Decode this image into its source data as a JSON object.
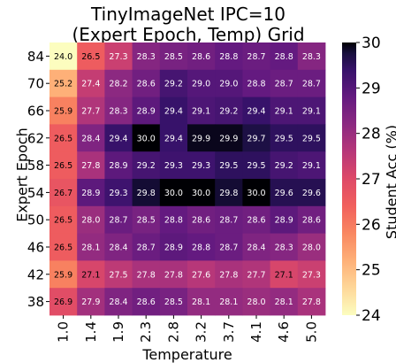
{
  "chart_data": {
    "type": "heatmap",
    "title_line1": "TinyImageNet IPC=10",
    "title_line2": "(Expert Epoch, Temp) Grid",
    "xlabel": "Temperature",
    "ylabel": "Expert Epoch",
    "colorbar_label": "Student Acc (%)",
    "colormap": "magma",
    "vmin": 24,
    "vmax": 30,
    "colorbar_ticks": [
      "24",
      "25",
      "26",
      "27",
      "28",
      "29",
      "30"
    ],
    "x_categories": [
      "1.0",
      "1.4",
      "1.9",
      "2.3",
      "2.8",
      "3.2",
      "3.7",
      "4.1",
      "4.6",
      "5.0"
    ],
    "y_categories": [
      "84",
      "70",
      "66",
      "62",
      "58",
      "54",
      "50",
      "46",
      "42",
      "38"
    ],
    "values": [
      [
        24.0,
        26.5,
        27.3,
        28.3,
        28.5,
        28.6,
        28.8,
        28.7,
        28.8,
        28.3
      ],
      [
        25.2,
        27.4,
        28.2,
        28.6,
        29.2,
        29.0,
        29.0,
        28.8,
        28.7,
        28.7
      ],
      [
        25.9,
        27.7,
        28.3,
        28.9,
        29.4,
        29.1,
        29.2,
        29.4,
        29.1,
        29.1
      ],
      [
        26.5,
        28.4,
        29.4,
        30.0,
        29.4,
        29.9,
        29.9,
        29.7,
        29.5,
        29.5
      ],
      [
        26.5,
        27.8,
        28.9,
        29.2,
        29.3,
        29.3,
        29.5,
        29.5,
        29.2,
        29.1
      ],
      [
        26.7,
        28.9,
        29.3,
        29.8,
        30.0,
        30.0,
        29.8,
        30.0,
        29.6,
        29.6
      ],
      [
        26.5,
        28.0,
        28.7,
        28.5,
        28.8,
        28.6,
        28.7,
        28.6,
        28.9,
        28.6
      ],
      [
        26.5,
        28.1,
        28.4,
        28.7,
        28.9,
        28.8,
        28.7,
        28.4,
        28.3,
        28.0
      ],
      [
        25.9,
        27.1,
        27.5,
        27.8,
        27.8,
        27.6,
        27.8,
        27.7,
        27.1,
        27.3
      ],
      [
        26.9,
        27.9,
        28.4,
        28.6,
        28.5,
        28.1,
        28.1,
        28.0,
        28.1,
        27.8
      ]
    ]
  }
}
